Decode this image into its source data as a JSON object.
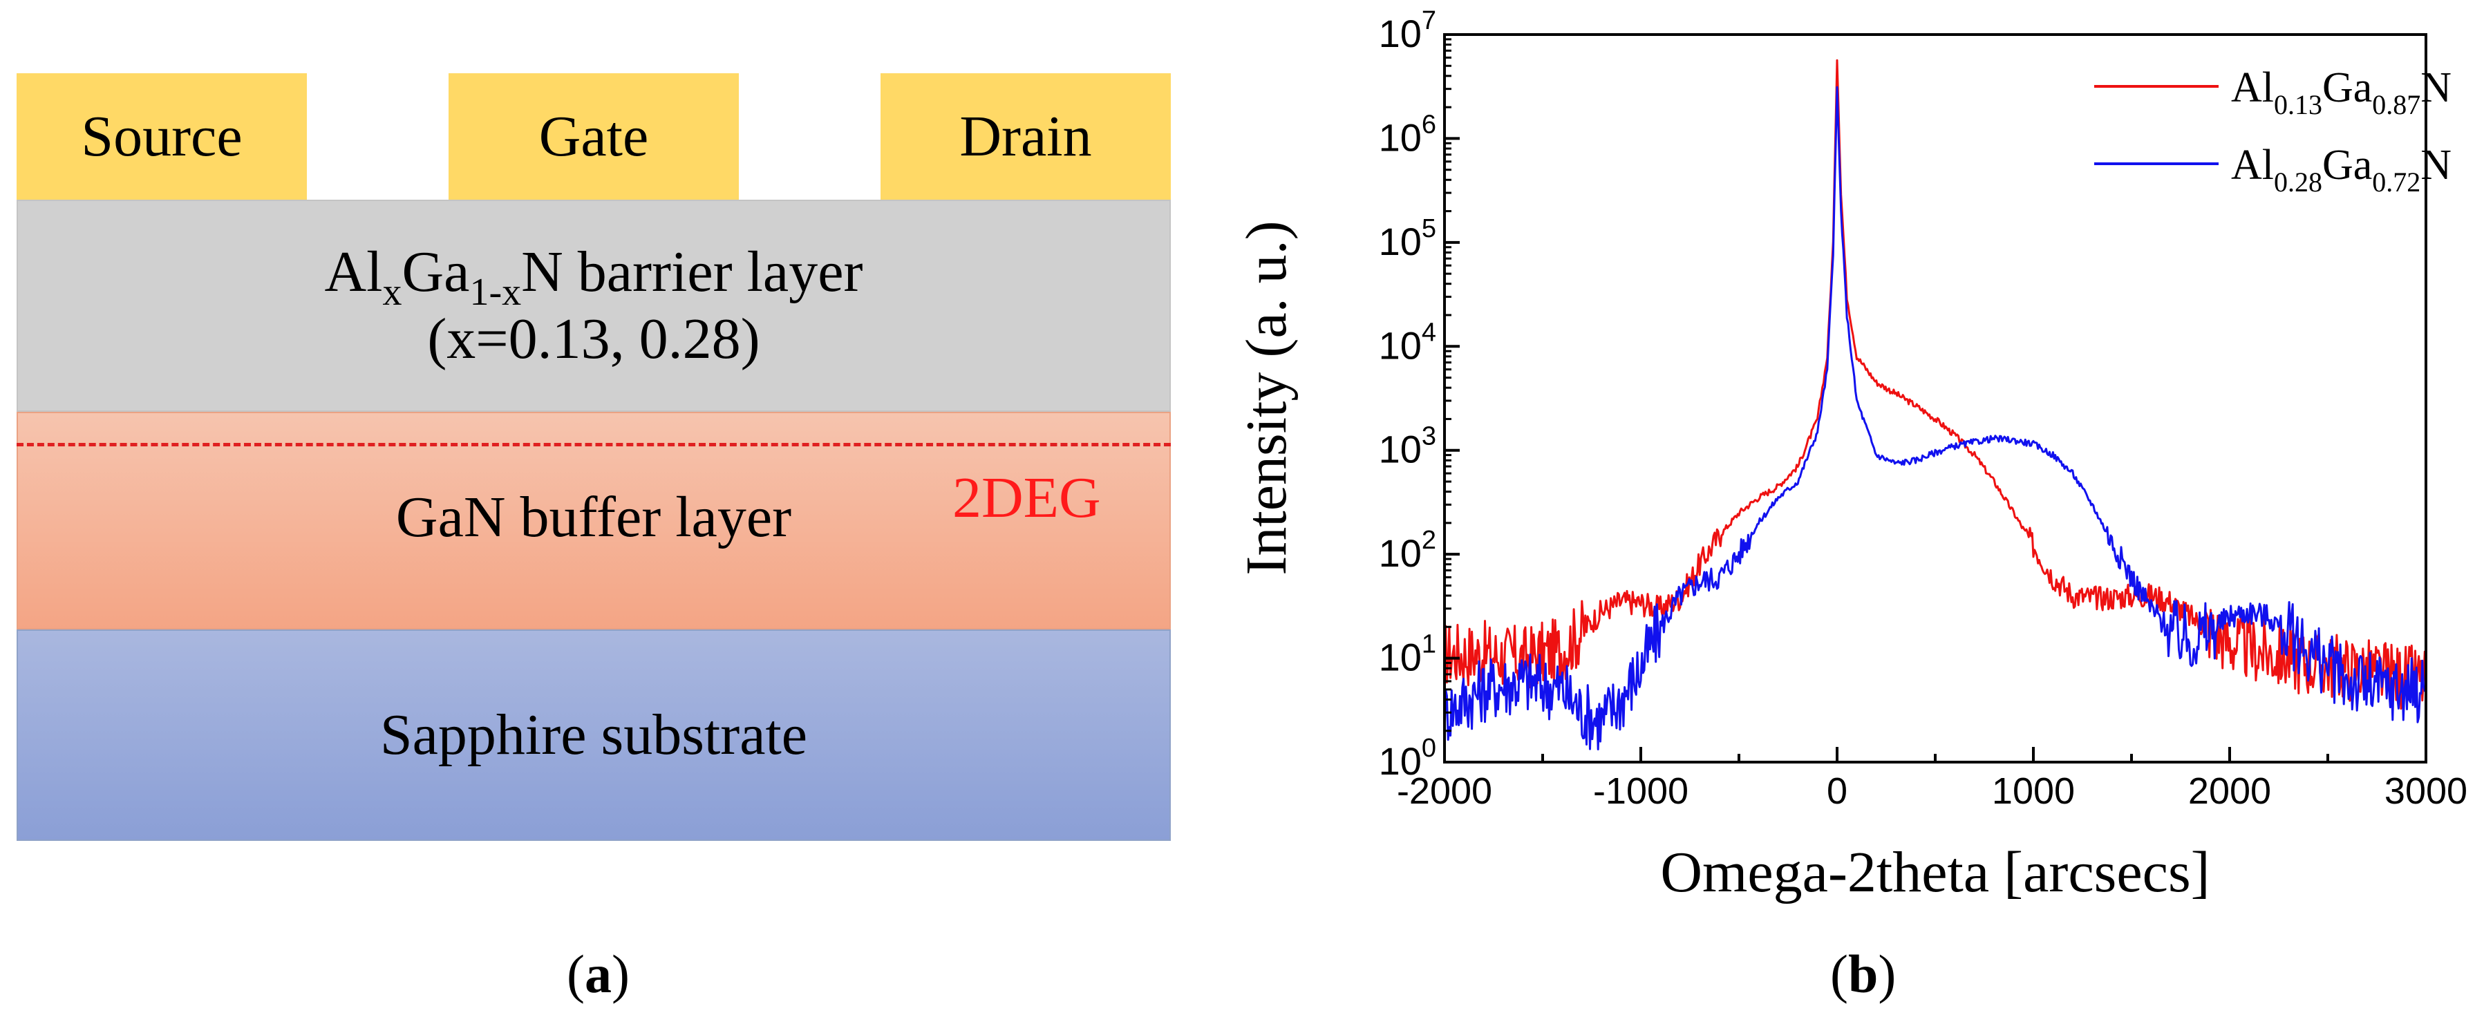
{
  "panel_a": {
    "caption_letter": "a",
    "contacts": {
      "source": "Source",
      "gate": "Gate",
      "drain": "Drain"
    },
    "barrier": {
      "prefix": "Al",
      "sub_x": "x",
      "mid": "Ga",
      "sub_1x": "1-x",
      "suffix": "N barrier layer",
      "composition": "(x=0.13, 0.28)"
    },
    "buffer_label": "GaN buffer layer",
    "twodeg_label": "2DEG",
    "substrate_label": "Sapphire substrate",
    "colors": {
      "contact": "#ffd966",
      "barrier": "#d0d0d0",
      "buffer": "#f4a585",
      "substrate": "#8b9fd6",
      "twodeg": "#ff1a1a"
    }
  },
  "panel_b": {
    "caption_letter": "b"
  },
  "chart_data": {
    "type": "line",
    "xlabel": "Omega-2theta [arcsecs]",
    "ylabel": "Intensity (a. u.)",
    "xlim": [
      -2000,
      3000
    ],
    "ylim_log10": [
      0,
      7
    ],
    "y_scale": "log",
    "x_ticks": [
      -2000,
      -1000,
      0,
      1000,
      2000,
      3000
    ],
    "x_tick_labels": [
      "-2000",
      "-1000",
      "0",
      "1000",
      "2000",
      "3000"
    ],
    "y_ticks_exp": [
      0,
      1,
      2,
      3,
      4,
      5,
      6,
      7
    ],
    "y_tick_base": "10",
    "legend_position": "top-right",
    "series": [
      {
        "name": "Al0.13Ga0.87N",
        "legend": {
          "a": "Al",
          "s1": "0.13",
          "b": "Ga",
          "s2": "0.87",
          "c": "N"
        },
        "color": "#ee1111",
        "x": [
          -2000,
          -1800,
          -1600,
          -1400,
          -1300,
          -1200,
          -1100,
          -1000,
          -900,
          -800,
          -700,
          -600,
          -500,
          -400,
          -300,
          -200,
          -100,
          -50,
          -20,
          0,
          20,
          50,
          100,
          200,
          300,
          400,
          500,
          600,
          700,
          800,
          900,
          1000,
          1100,
          1200,
          1300,
          1400,
          1500,
          1600,
          1700,
          1800,
          2000,
          2200,
          2400,
          2600,
          2800,
          3000
        ],
        "y": [
          11,
          11,
          10,
          12,
          18,
          28,
          35,
          34,
          30,
          38,
          80,
          150,
          250,
          350,
          450,
          700,
          2000,
          8000,
          100000,
          6000000,
          300000,
          30000,
          8000,
          4500,
          3500,
          2700,
          2000,
          1400,
          900,
          500,
          250,
          120,
          60,
          40,
          38,
          38,
          40,
          40,
          35,
          25,
          14,
          11,
          9,
          8,
          7,
          6
        ]
      },
      {
        "name": "Al0.28Ga0.72N",
        "legend": {
          "a": "Al",
          "s1": "0.28",
          "b": "Ga",
          "s2": "0.72",
          "c": "N"
        },
        "color": "#1111ee",
        "x": [
          -2000,
          -1800,
          -1600,
          -1400,
          -1300,
          -1200,
          -1100,
          -1000,
          -900,
          -800,
          -700,
          -600,
          -500,
          -400,
          -300,
          -200,
          -100,
          -50,
          -20,
          0,
          20,
          50,
          100,
          200,
          300,
          400,
          500,
          600,
          700,
          800,
          900,
          1000,
          1100,
          1200,
          1300,
          1400,
          1500,
          1600,
          1700,
          1800,
          1900,
          2000,
          2100,
          2200,
          2400,
          2600,
          2800,
          3000
        ],
        "y": [
          3,
          5,
          6,
          5,
          3,
          2.5,
          4,
          8,
          20,
          40,
          55,
          60,
          100,
          200,
          350,
          500,
          1500,
          6000,
          80000,
          3000000,
          200000,
          20000,
          3000,
          900,
          750,
          800,
          950,
          1100,
          1200,
          1300,
          1250,
          1150,
          900,
          600,
          300,
          130,
          60,
          30,
          18,
          15,
          18,
          25,
          28,
          25,
          12,
          6,
          5,
          5
        ]
      }
    ]
  }
}
